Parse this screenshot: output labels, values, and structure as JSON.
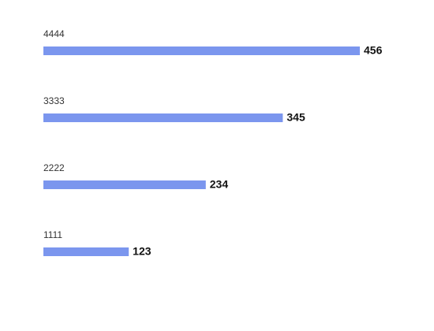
{
  "chart_data": {
    "type": "bar",
    "orientation": "horizontal",
    "categories": [
      "4444",
      "3333",
      "2222",
      "1111"
    ],
    "values": [
      456,
      345,
      234,
      123
    ],
    "color": "#7b96ee"
  }
}
